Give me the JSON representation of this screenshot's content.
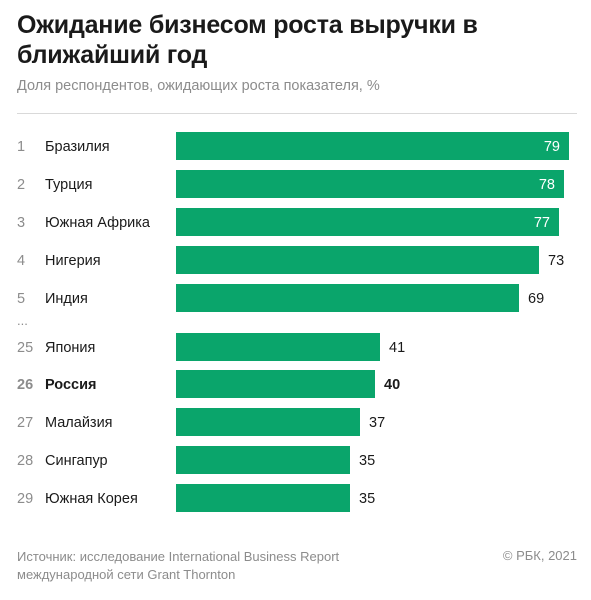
{
  "header": {
    "title": "Ожидание бизнесом роста выручки в ближайший год",
    "subtitle": "Доля респондентов, ожидающих роста показателя, %"
  },
  "footer": {
    "source": "Источник: исследование International Business Report международной сети Grant Thornton",
    "copyright": "© РБК, 2021"
  },
  "colors": {
    "bar": "#0aa56b",
    "label_inside": "#ffffff",
    "label_outside": "#1a1a1a",
    "rank": "#8c8c8c"
  },
  "chart_data": {
    "type": "bar",
    "orientation": "horizontal",
    "categories": [
      "Бразилия",
      "Турция",
      "Южная Африка",
      "Нигерия",
      "Индия",
      "Япония",
      "Россия",
      "Малайзия",
      "Сингапур",
      "Южная Корея"
    ],
    "ranks": [
      "1",
      "2",
      "3",
      "4",
      "5",
      "25",
      "26",
      "27",
      "28",
      "29"
    ],
    "values": [
      79,
      78,
      77,
      73,
      69,
      41,
      40,
      37,
      35,
      35
    ],
    "highlight": "Россия",
    "gap_marker": "...",
    "xlim": [
      0,
      79
    ]
  }
}
